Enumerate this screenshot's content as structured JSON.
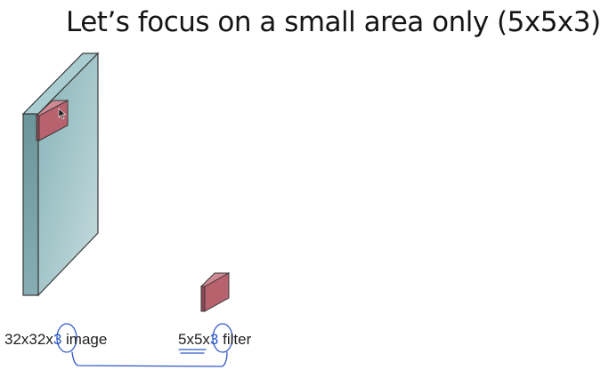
{
  "slide": {
    "title": "Let’s focus on a small area only (5x5x3)"
  },
  "labels": {
    "image_prefix": "32x32x",
    "image_depth": "3",
    "image_suffix": " image",
    "filter_prefix": "5x5x",
    "filter_depth": "3",
    "filter_suffix": " filter"
  },
  "colors": {
    "volume_front": "#8fb8bd",
    "volume_side": "#6f9aa0",
    "volume_top": "#a9cdd0",
    "filter_front": "#b8626e",
    "filter_side": "#8f4652",
    "filter_top": "#d08a94",
    "annotation": "#2f58c8"
  }
}
